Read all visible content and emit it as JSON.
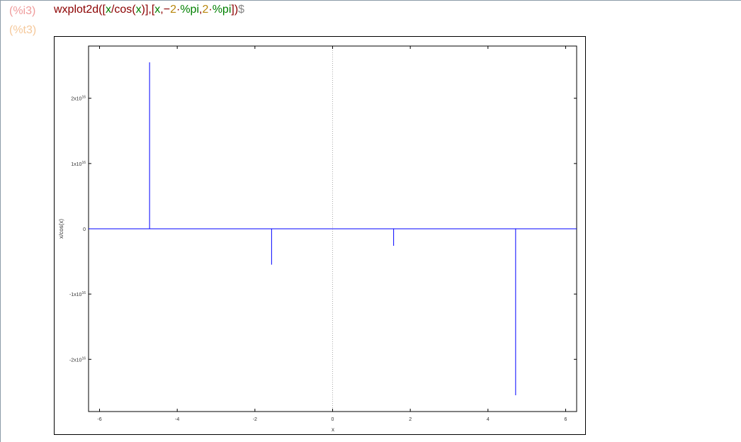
{
  "cell": {
    "input_label": "(%i3)",
    "output_label": "(%t3)",
    "command_tokens": [
      {
        "text": "wxplot2d(",
        "color": "#8b0000"
      },
      {
        "text": "[",
        "color": "#8b0000"
      },
      {
        "text": "x",
        "color": "#008000"
      },
      {
        "text": "/",
        "color": "#8b0000"
      },
      {
        "text": "cos(",
        "color": "#8b0000"
      },
      {
        "text": "x",
        "color": "#008000"
      },
      {
        "text": ")],[",
        "color": "#8b0000"
      },
      {
        "text": "x",
        "color": "#008000"
      },
      {
        "text": ",−",
        "color": "#8b0000"
      },
      {
        "text": "2",
        "color": "#b8860b"
      },
      {
        "text": "·",
        "color": "#8b0000"
      },
      {
        "text": "%pi",
        "color": "#008000"
      },
      {
        "text": ",",
        "color": "#8b0000"
      },
      {
        "text": "2",
        "color": "#b8860b"
      },
      {
        "text": "·",
        "color": "#8b0000"
      },
      {
        "text": "%pi",
        "color": "#008000"
      },
      {
        "text": "])",
        "color": "#8b0000"
      },
      {
        "text": "$",
        "color": "#888888"
      }
    ]
  },
  "chart_data": {
    "type": "line",
    "title": "",
    "xlabel": "x",
    "ylabel": "x/cos(x)",
    "xlim": [
      -6.283,
      6.283
    ],
    "ylim": [
      -2.8e+16,
      2.8e+16
    ],
    "x_ticks": [
      {
        "value": -6,
        "label": "-6"
      },
      {
        "value": -4,
        "label": "-4"
      },
      {
        "value": -2,
        "label": "-2"
      },
      {
        "value": 0,
        "label": "0"
      },
      {
        "value": 2,
        "label": "2"
      },
      {
        "value": 4,
        "label": "4"
      },
      {
        "value": 6,
        "label": "6"
      }
    ],
    "y_ticks": [
      {
        "value": 2e+16,
        "mantissa": "2x10",
        "exp": "16"
      },
      {
        "value": 1e+16,
        "mantissa": "1x10",
        "exp": "16"
      },
      {
        "value": 0,
        "mantissa": "0",
        "exp": ""
      },
      {
        "value": -1e+16,
        "mantissa": "-1x10",
        "exp": "16"
      },
      {
        "value": -2e+16,
        "mantissa": "-2x10",
        "exp": "16"
      }
    ],
    "series": [
      {
        "color": "#0000ff",
        "points": [
          {
            "x": -6.283,
            "y": 0
          },
          {
            "x": -4.712,
            "y": 0
          },
          {
            "x": -4.712,
            "y": 2.55e+16
          },
          {
            "x": -4.712,
            "y": 0
          },
          {
            "x": -1.571,
            "y": 0
          },
          {
            "x": -1.571,
            "y": -5500000000000000.0
          },
          {
            "x": -1.571,
            "y": 0
          },
          {
            "x": 1.571,
            "y": 0
          },
          {
            "x": 1.571,
            "y": -2600000000000000.0
          },
          {
            "x": 1.571,
            "y": 0
          },
          {
            "x": 4.712,
            "y": 0
          },
          {
            "x": 4.712,
            "y": -2.55e+16
          },
          {
            "x": 4.712,
            "y": 0
          },
          {
            "x": 6.283,
            "y": 0
          }
        ]
      }
    ],
    "zero_axis_x": 0,
    "zero_axis_style": "dotted"
  }
}
